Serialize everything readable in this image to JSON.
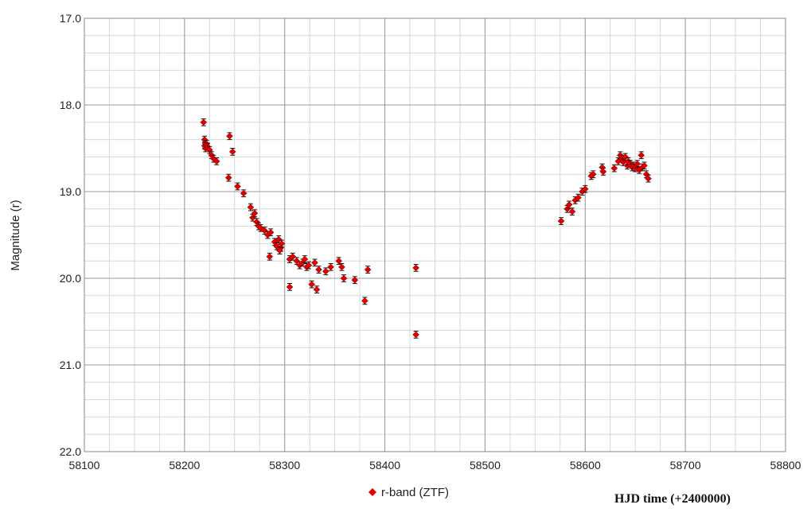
{
  "chart_data": {
    "type": "scatter",
    "xlabel": "HJD time (+2400000)",
    "ylabel": "Magnitude (r)",
    "xlim": [
      58100,
      58800
    ],
    "ylim": [
      22.0,
      17.0
    ],
    "y_inverted": true,
    "x_ticks": [
      "58100",
      "58200",
      "58300",
      "58400",
      "58500",
      "58600",
      "58700",
      "58800"
    ],
    "y_ticks": [
      "17.0",
      "18.0",
      "19.0",
      "20.0",
      "21.0",
      "22.0"
    ],
    "grid": true,
    "legend_placement": "bottom-center",
    "series": [
      {
        "name": "r-band (ZTF)",
        "color": "#e00000",
        "marker": "diamond",
        "error_bar": 0.04,
        "x": [
          58219,
          58220,
          58220,
          58221,
          58222,
          58223,
          58225,
          58227,
          58229,
          58232,
          58244,
          58245,
          58248,
          58253,
          58259,
          58266,
          58268,
          58270,
          58272,
          58274,
          58276,
          58280,
          58283,
          58286,
          58285,
          58290,
          58292,
          58294,
          58296,
          58297,
          58295,
          58305,
          58305,
          58308,
          58312,
          58315,
          58318,
          58320,
          58322,
          58324,
          58327,
          58330,
          58332,
          58334,
          58341,
          58346,
          58354,
          58357,
          58359,
          58370,
          58380,
          58383,
          58431,
          58431,
          58576,
          58582,
          58584,
          58587,
          58590,
          58593,
          58597,
          58600,
          58606,
          58608,
          58617,
          58618,
          58629,
          58633,
          58635,
          58637,
          58638,
          58640,
          58642,
          58643,
          58645,
          58647,
          58648,
          58650,
          58652,
          58654,
          58656,
          58657,
          58659,
          58661,
          58663
        ],
        "y": [
          18.2,
          18.4,
          18.47,
          18.5,
          18.45,
          18.48,
          18.52,
          18.58,
          18.62,
          18.65,
          18.84,
          18.36,
          18.54,
          18.94,
          19.02,
          19.18,
          19.3,
          19.25,
          19.35,
          19.4,
          19.42,
          19.45,
          19.5,
          19.47,
          19.75,
          19.58,
          19.63,
          19.55,
          19.65,
          19.6,
          19.68,
          19.78,
          20.1,
          19.75,
          19.8,
          19.85,
          19.82,
          19.78,
          19.87,
          19.85,
          20.07,
          19.82,
          20.13,
          19.9,
          19.92,
          19.87,
          19.8,
          19.87,
          20.0,
          20.02,
          20.26,
          19.9,
          19.88,
          20.65,
          19.34,
          19.2,
          19.15,
          19.23,
          19.1,
          19.07,
          19.0,
          18.97,
          18.82,
          18.8,
          18.72,
          18.77,
          18.73,
          18.65,
          18.58,
          18.62,
          18.66,
          18.6,
          18.7,
          18.65,
          18.68,
          18.72,
          18.7,
          18.73,
          18.68,
          18.75,
          18.58,
          18.72,
          18.7,
          18.8,
          18.85
        ]
      }
    ]
  }
}
